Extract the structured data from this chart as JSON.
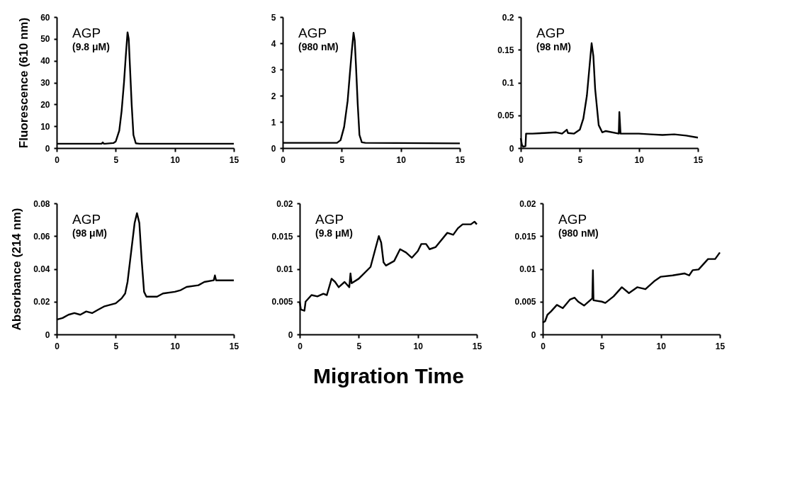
{
  "chart_data": [
    {
      "type": "line",
      "ylabel": "Fluorescence (610 nm)",
      "annotations": [
        "AGP",
        "(9.8 μM)"
      ],
      "xlim": [
        0,
        15
      ],
      "xticks": [
        0,
        5,
        10,
        15
      ],
      "ylim": [
        0,
        60
      ],
      "yticks": [
        0,
        10,
        20,
        30,
        40,
        50,
        60
      ],
      "grid": false,
      "x": [
        0,
        3.8,
        3.9,
        4.0,
        4.1,
        4.8,
        5.0,
        5.3,
        5.5,
        5.7,
        5.85,
        6.0,
        6.1,
        6.2,
        6.35,
        6.5,
        6.7,
        7,
        15
      ],
      "series": [
        {
          "color": "#000000",
          "values": [
            2,
            2,
            2.6,
            2,
            2,
            2.3,
            3,
            8,
            17,
            30,
            42,
            53,
            50,
            38,
            20,
            6,
            2.2,
            2,
            2
          ]
        }
      ]
    },
    {
      "type": "line",
      "annotations": [
        "AGP",
        "(980 nM)"
      ],
      "xlim": [
        0,
        15
      ],
      "xticks": [
        0,
        5,
        10,
        15
      ],
      "ylim": [
        0,
        5
      ],
      "yticks": [
        0,
        1,
        2,
        3,
        4,
        5
      ],
      "grid": false,
      "x": [
        0,
        4.6,
        4.9,
        5.2,
        5.5,
        5.7,
        5.85,
        6.0,
        6.1,
        6.2,
        6.35,
        6.5,
        6.7,
        7,
        15
      ],
      "series": [
        {
          "color": "#000000",
          "values": [
            0.2,
            0.2,
            0.3,
            0.8,
            1.8,
            2.9,
            3.7,
            4.4,
            4.1,
            3.2,
            1.7,
            0.5,
            0.22,
            0.2,
            0.18
          ]
        }
      ]
    },
    {
      "type": "line",
      "annotations": [
        "AGP",
        "(98 nM)"
      ],
      "xlim": [
        0,
        15
      ],
      "xticks": [
        0,
        5,
        10,
        15
      ],
      "ylim": [
        0,
        0.2
      ],
      "yticks": [
        0,
        0.05,
        0.1,
        0.15,
        0.2
      ],
      "grid": false,
      "x": [
        0,
        0.1,
        0.2,
        0.4,
        0.45,
        1,
        2,
        3,
        3.5,
        3.9,
        4,
        4.5,
        5,
        5.3,
        5.6,
        5.85,
        6.0,
        6.15,
        6.3,
        6.6,
        6.9,
        7.2,
        8.3,
        8.35,
        8.45,
        10,
        11,
        12,
        13,
        14,
        15
      ],
      "series": [
        {
          "color": "#000000",
          "values": [
            0.015,
            0.005,
            0.002,
            0.003,
            0.022,
            0.022,
            0.023,
            0.024,
            0.022,
            0.028,
            0.023,
            0.022,
            0.028,
            0.045,
            0.08,
            0.13,
            0.16,
            0.14,
            0.09,
            0.035,
            0.024,
            0.026,
            0.022,
            0.055,
            0.022,
            0.022,
            0.021,
            0.02,
            0.021,
            0.019,
            0.016
          ]
        }
      ]
    },
    {
      "type": "line",
      "ylabel": "Absorbance (214 nm)",
      "annotations": [
        "AGP",
        "(98 μM)"
      ],
      "xlim": [
        0,
        15
      ],
      "xticks": [
        0,
        5,
        10,
        15
      ],
      "ylim": [
        0,
        0.08
      ],
      "yticks": [
        0,
        0.02,
        0.04,
        0.06,
        0.08
      ],
      "grid": false,
      "x": [
        0,
        0.5,
        1,
        1.5,
        2,
        2.5,
        3,
        3.5,
        4,
        4.5,
        5,
        5.5,
        5.8,
        6.0,
        6.3,
        6.6,
        6.8,
        7.0,
        7.2,
        7.4,
        7.6,
        8.5,
        9,
        10,
        10.5,
        11,
        12,
        12.5,
        13.3,
        13.4,
        13.5,
        14,
        15
      ],
      "series": [
        {
          "color": "#000000",
          "values": [
            0.009,
            0.01,
            0.012,
            0.013,
            0.012,
            0.014,
            0.013,
            0.015,
            0.017,
            0.018,
            0.019,
            0.022,
            0.025,
            0.032,
            0.05,
            0.068,
            0.074,
            0.068,
            0.045,
            0.026,
            0.023,
            0.023,
            0.025,
            0.026,
            0.027,
            0.029,
            0.03,
            0.032,
            0.033,
            0.036,
            0.033,
            0.033,
            0.033
          ]
        }
      ]
    },
    {
      "type": "line",
      "xlabel": "Migration Time",
      "annotations": [
        "AGP",
        "(9.8 μM)"
      ],
      "xlim": [
        0,
        15
      ],
      "xticks": [
        0,
        5,
        10,
        15
      ],
      "ylim": [
        0,
        0.02
      ],
      "yticks": [
        0,
        0.005,
        0.01,
        0.015,
        0.02
      ],
      "grid": false,
      "x": [
        0,
        0.1,
        0.4,
        0.5,
        1,
        1.5,
        2,
        2.3,
        2.7,
        3,
        3.3,
        3.8,
        4.2,
        4.3,
        4.4,
        5,
        6,
        6.4,
        6.7,
        6.9,
        7.1,
        7.3,
        8,
        8.5,
        9,
        9.5,
        10,
        10.3,
        10.7,
        11,
        11.5,
        12.5,
        13,
        13.4,
        13.8,
        14.5,
        14.8,
        15
      ],
      "series": [
        {
          "color": "#000000",
          "values": [
            0.005,
            0.0038,
            0.0036,
            0.005,
            0.006,
            0.0058,
            0.0062,
            0.006,
            0.0085,
            0.008,
            0.0072,
            0.008,
            0.0072,
            0.0093,
            0.0078,
            0.0085,
            0.0103,
            0.013,
            0.015,
            0.014,
            0.011,
            0.0105,
            0.0112,
            0.013,
            0.0125,
            0.0117,
            0.0127,
            0.0138,
            0.0138,
            0.013,
            0.0133,
            0.0155,
            0.0152,
            0.0162,
            0.0168,
            0.0168,
            0.0172,
            0.0168
          ]
        }
      ]
    },
    {
      "type": "line",
      "annotations": [
        "AGP",
        "(980 nM)"
      ],
      "xlim": [
        0,
        15
      ],
      "xticks": [
        0,
        5,
        10,
        15
      ],
      "ylim": [
        0,
        0.02
      ],
      "yticks": [
        0,
        0.005,
        0.01,
        0.015,
        0.02
      ],
      "grid": false,
      "x": [
        0,
        0.2,
        0.4,
        0.7,
        1.2,
        1.7,
        2.3,
        2.7,
        3,
        3.5,
        4.2,
        4.25,
        4.3,
        5,
        5.3,
        6,
        6.7,
        7.3,
        8,
        8.7,
        9.5,
        10,
        11,
        12,
        12.4,
        12.7,
        13.2,
        14,
        14.6,
        15
      ],
      "series": [
        {
          "color": "#000000",
          "values": [
            0.0018,
            0.002,
            0.003,
            0.0035,
            0.0045,
            0.004,
            0.0053,
            0.0056,
            0.005,
            0.0044,
            0.0055,
            0.0098,
            0.0052,
            0.005,
            0.0048,
            0.0058,
            0.0072,
            0.0063,
            0.0072,
            0.0069,
            0.0082,
            0.0088,
            0.009,
            0.0093,
            0.009,
            0.0098,
            0.0099,
            0.0115,
            0.0115,
            0.0125
          ]
        }
      ]
    }
  ]
}
